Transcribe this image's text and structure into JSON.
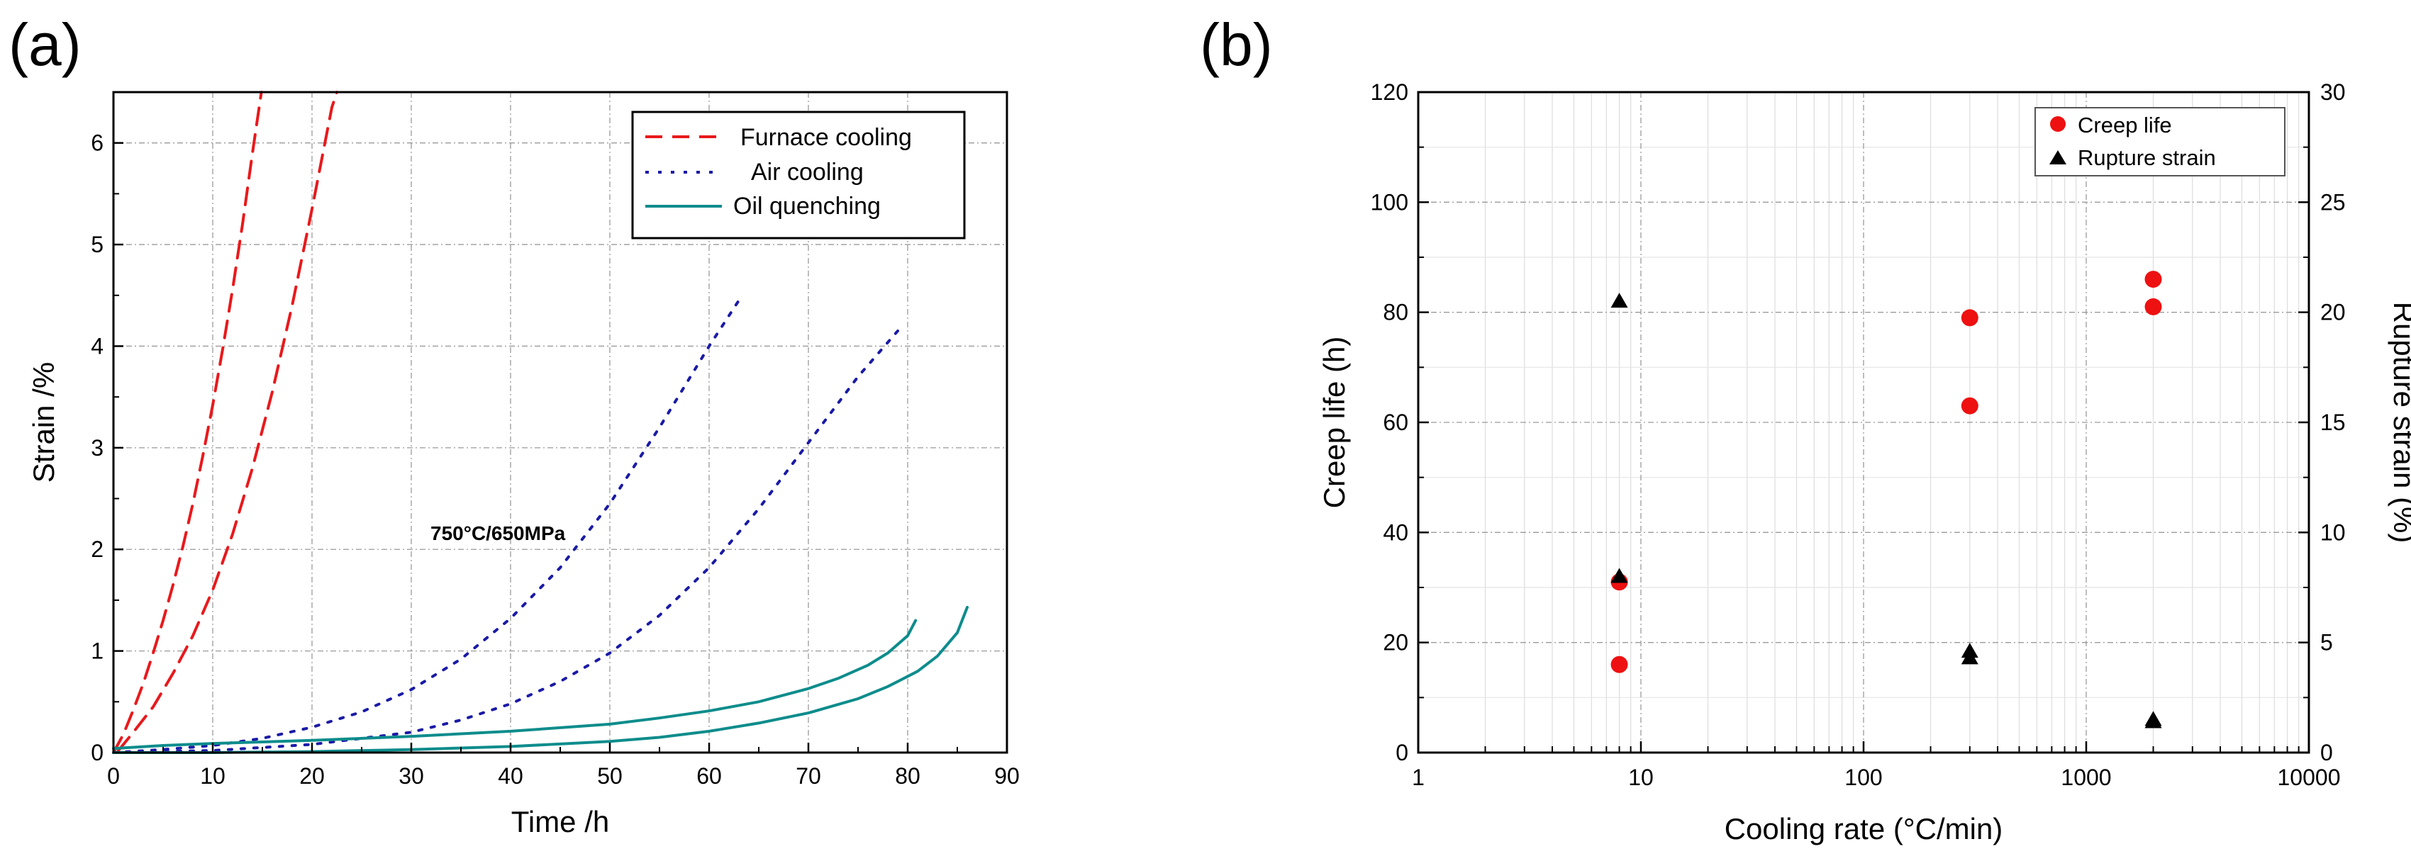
{
  "chart_data": [
    {
      "panel_label": "(a)",
      "type": "line",
      "xlabel": "Time /h",
      "ylabel": "Strain /%",
      "xlim": [
        0,
        90
      ],
      "ylim": [
        0,
        6.5
      ],
      "xticks": [
        "0",
        "10",
        "20",
        "30",
        "40",
        "50",
        "60",
        "70",
        "80",
        "90"
      ],
      "yticks": [
        "0",
        "1",
        "2",
        "3",
        "4",
        "5",
        "6"
      ],
      "grid": true,
      "annotation": {
        "text": "750°C/650MPa",
        "x": 41,
        "y": 2.15
      },
      "legend": {
        "placement": "top-right",
        "entries": [
          {
            "label": "Furnace cooling",
            "style": "dashed",
            "color": "#e8191c"
          },
          {
            "label": "Air cooling",
            "style": "dotted",
            "color": "#1a1aa6"
          },
          {
            "label": "Oil quenching",
            "style": "solid",
            "color": "#0e8c8c"
          }
        ]
      },
      "series": [
        {
          "name": "Furnace cooling",
          "color": "#e8191c",
          "style": "dashed",
          "x": [
            0,
            1,
            2,
            3,
            4,
            5,
            6,
            7,
            8,
            9,
            10,
            11,
            12,
            13,
            14,
            14.9
          ],
          "y": [
            0,
            0.18,
            0.42,
            0.68,
            0.98,
            1.3,
            1.65,
            2.03,
            2.45,
            2.92,
            3.42,
            3.97,
            4.56,
            5.2,
            5.9,
            6.5
          ]
        },
        {
          "name": "Furnace cooling",
          "color": "#e8191c",
          "style": "dashed",
          "x": [
            0.5,
            2,
            4,
            6,
            8,
            10,
            12,
            14,
            16,
            18,
            20,
            22,
            22.5
          ],
          "y": [
            0.02,
            0.2,
            0.45,
            0.78,
            1.15,
            1.6,
            2.15,
            2.8,
            3.55,
            4.4,
            5.35,
            6.35,
            6.5
          ]
        },
        {
          "name": "Air cooling",
          "color": "#1a1aa6",
          "style": "dotted",
          "x": [
            0,
            5,
            10,
            15,
            20,
            25,
            30,
            35,
            40,
            45,
            50,
            55,
            60,
            63
          ],
          "y": [
            0,
            0.03,
            0.07,
            0.14,
            0.25,
            0.4,
            0.62,
            0.92,
            1.32,
            1.82,
            2.45,
            3.2,
            4.0,
            4.45
          ]
        },
        {
          "name": "Air cooling",
          "color": "#1a1aa6",
          "style": "dotted",
          "x": [
            0,
            10,
            20,
            30,
            35,
            40,
            45,
            50,
            55,
            60,
            65,
            70,
            75,
            79
          ],
          "y": [
            0,
            0.02,
            0.08,
            0.2,
            0.32,
            0.48,
            0.7,
            0.98,
            1.35,
            1.82,
            2.4,
            3.05,
            3.7,
            4.15
          ]
        },
        {
          "name": "Oil quenching",
          "color": "#0e8c8c",
          "style": "solid",
          "x": [
            0,
            5,
            10,
            20,
            30,
            40,
            50,
            55,
            60,
            65,
            70,
            73,
            76,
            78,
            80,
            80.8
          ],
          "y": [
            0.04,
            0.07,
            0.09,
            0.12,
            0.16,
            0.21,
            0.28,
            0.34,
            0.41,
            0.5,
            0.63,
            0.73,
            0.86,
            0.98,
            1.15,
            1.3
          ]
        },
        {
          "name": "Oil quenching",
          "color": "#0e8c8c",
          "style": "solid",
          "x": [
            0,
            10,
            20,
            30,
            40,
            50,
            55,
            60,
            65,
            70,
            75,
            78,
            81,
            83,
            85,
            86
          ],
          "y": [
            0,
            0.0,
            0.01,
            0.03,
            0.06,
            0.11,
            0.15,
            0.21,
            0.29,
            0.39,
            0.53,
            0.65,
            0.8,
            0.95,
            1.18,
            1.43
          ]
        }
      ]
    },
    {
      "panel_label": "(b)",
      "type": "scatter",
      "xlabel": "Cooling rate (°C/min)",
      "ylabel": "Creep life (h)",
      "y2label": "Rupture strain (%)",
      "xscale": "log",
      "xlim": [
        1,
        10000
      ],
      "ylim": [
        0,
        120
      ],
      "y2lim": [
        0,
        30
      ],
      "xticks": [
        "1",
        "10",
        "100",
        "1000",
        "10000"
      ],
      "yticks": [
        "0",
        "20",
        "40",
        "60",
        "80",
        "100",
        "120"
      ],
      "y2ticks": [
        "0",
        "5",
        "10",
        "15",
        "20",
        "25",
        "30"
      ],
      "grid": true,
      "legend": {
        "placement": "top-right",
        "entries": [
          {
            "label": "Creep life",
            "marker": "circle",
            "color": "#ee1111"
          },
          {
            "label": "Rupture strain",
            "marker": "triangle",
            "color": "#000000"
          }
        ]
      },
      "series": [
        {
          "name": "Creep life",
          "axis": "left",
          "marker": "circle",
          "color": "#ee1111",
          "x": [
            8,
            8,
            300,
            300,
            2000,
            2000
          ],
          "y": [
            31,
            16,
            79,
            63,
            86,
            81
          ]
        },
        {
          "name": "Rupture strain",
          "axis": "right",
          "marker": "triangle",
          "color": "#000000",
          "x": [
            8,
            8,
            300,
            300,
            2000,
            2000
          ],
          "y": [
            20.5,
            8.0,
            4.6,
            4.3,
            1.5,
            1.4
          ]
        }
      ]
    }
  ]
}
